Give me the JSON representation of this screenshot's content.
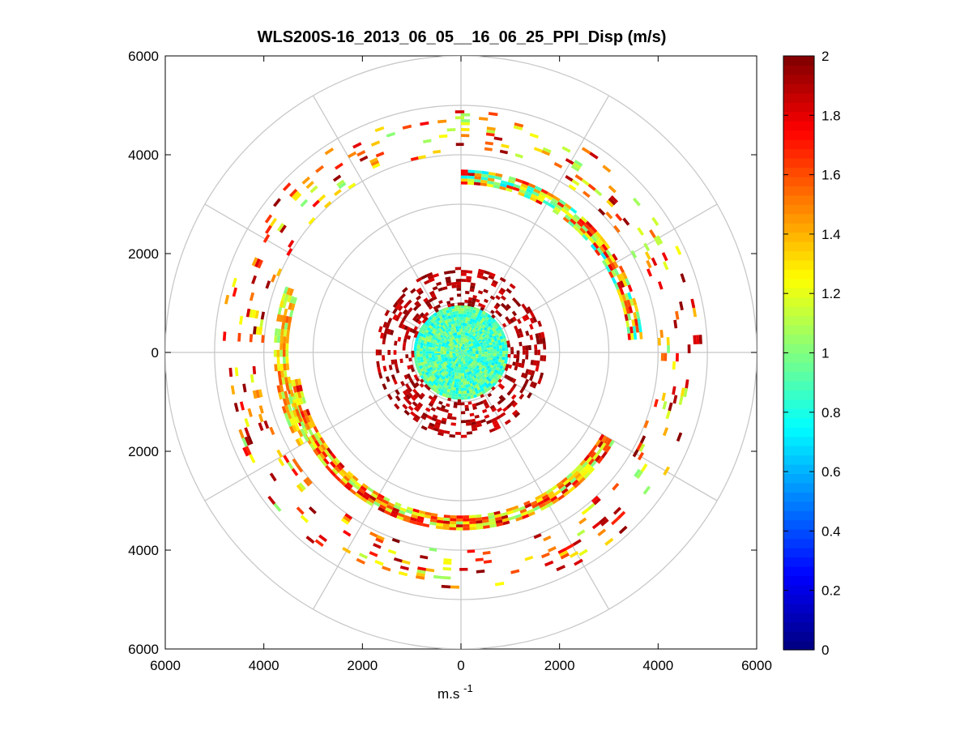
{
  "chart_data": {
    "type": "polar_ppi",
    "title": "WLS200S-16_2013_06_05__16_06_25_PPI_Disp (m/s)",
    "xlabel_base": "m.s",
    "xlabel_exp": "-1",
    "ylabel": "",
    "xlim": [
      -6000,
      6000
    ],
    "ylim": [
      -6000,
      6000
    ],
    "x_tick_labels": [
      "6000",
      "4000",
      "2000",
      "0",
      "2000",
      "4000",
      "6000"
    ],
    "x_tick_values": [
      -6000,
      -4000,
      -2000,
      0,
      2000,
      4000,
      6000
    ],
    "y_tick_labels": [
      "6000",
      "4000",
      "2000",
      "0",
      "2000",
      "4000",
      "6000"
    ],
    "y_tick_values": [
      6000,
      4000,
      2000,
      0,
      -2000,
      -4000,
      -6000
    ],
    "range_rings": [
      1000,
      2000,
      3000,
      4000,
      5000,
      6000
    ],
    "spoke_angles_deg": [
      0,
      30,
      60,
      90,
      120,
      150,
      180,
      210,
      240,
      270,
      300,
      330
    ],
    "grid": true,
    "colorbar": {
      "colormap": "jet",
      "min": 0,
      "max": 2,
      "tick_labels": [
        "2",
        "1.8",
        "1.6",
        "1.4",
        "1.2",
        "1",
        "0.8",
        "0.6",
        "0.4",
        "0.2",
        "0"
      ],
      "tick_values": [
        2,
        1.8,
        1.6,
        1.4,
        1.2,
        1,
        0.8,
        0.6,
        0.4,
        0.2,
        0
      ],
      "placement": "right"
    },
    "series": [
      {
        "name": "central disk",
        "r_range": [
          0,
          950
        ],
        "az_range": [
          0,
          360
        ],
        "value_range": [
          0.7,
          1.1
        ],
        "coverage": 1.0
      },
      {
        "name": "inner scatter",
        "r_range": [
          950,
          1700
        ],
        "az_range": [
          0,
          360
        ],
        "value_range": [
          1.8,
          2.0
        ],
        "coverage": 0.35
      },
      {
        "name": "arc 3500m south",
        "r_range": [
          3300,
          3600
        ],
        "az_range": [
          120,
          260
        ],
        "value_range": [
          1.0,
          1.9
        ],
        "coverage": 0.9
      },
      {
        "name": "arc 3600m north-east",
        "r_range": [
          3400,
          3700
        ],
        "az_range": [
          0,
          85
        ],
        "value_range": [
          0.7,
          1.9
        ],
        "coverage": 0.85
      },
      {
        "name": "arc 3700m west",
        "r_range": [
          3500,
          3800
        ],
        "az_range": [
          240,
          290
        ],
        "value_range": [
          1.0,
          1.6
        ],
        "coverage": 0.8
      },
      {
        "name": "outer patches",
        "r_range": [
          4000,
          4900
        ],
        "az_range": [
          0,
          360
        ],
        "value_range": [
          1.0,
          2.0
        ],
        "coverage": 0.12
      }
    ]
  }
}
